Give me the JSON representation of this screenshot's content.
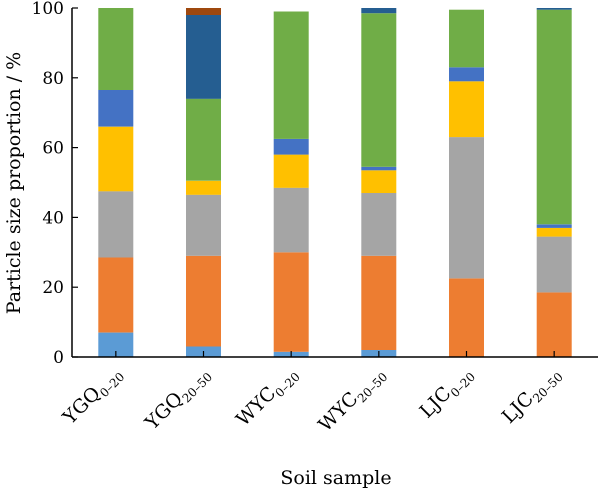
{
  "chart_data": {
    "type": "bar",
    "stacked": true,
    "title": "",
    "xlabel": "Soil sample",
    "ylabel": "Particle size proportion / %",
    "ylim": [
      0,
      100
    ],
    "yticks": [
      0,
      20,
      40,
      60,
      80,
      100
    ],
    "grid": false,
    "legend": null,
    "categories": [
      {
        "base": "YGQ",
        "sub": "0–20"
      },
      {
        "base": "YGQ",
        "sub": "20–50"
      },
      {
        "base": "WYC",
        "sub": "0–20"
      },
      {
        "base": "WYC",
        "sub": "20–50"
      },
      {
        "base": "LJC",
        "sub": "0–20"
      },
      {
        "base": "LJC",
        "sub": "20–50"
      }
    ],
    "series": [
      {
        "name": "light blue",
        "color": "#5b9bd5",
        "values": [
          7,
          3,
          1.5,
          2,
          0,
          0
        ]
      },
      {
        "name": "orange",
        "color": "#ed7d31",
        "values": [
          21.5,
          26,
          28.5,
          27,
          22.5,
          18.5
        ]
      },
      {
        "name": "gray",
        "color": "#a5a5a5",
        "values": [
          19,
          17.5,
          18.5,
          18,
          40.5,
          16
        ]
      },
      {
        "name": "yellow",
        "color": "#ffc000",
        "values": [
          18.5,
          4,
          9.5,
          6.5,
          16,
          2.5
        ]
      },
      {
        "name": "blue",
        "color": "#4472c4",
        "values": [
          10.5,
          0,
          4.5,
          1,
          4,
          1
        ]
      },
      {
        "name": "green",
        "color": "#70ad47",
        "values": [
          23.5,
          23.5,
          36.5,
          44,
          16.5,
          61.5
        ]
      },
      {
        "name": "dark blue",
        "color": "#255e91",
        "values": [
          0,
          24,
          0,
          1.5,
          0,
          0.5
        ]
      },
      {
        "name": "brown",
        "color": "#9e480e",
        "values": [
          0,
          2,
          0,
          0,
          0,
          0
        ]
      }
    ]
  }
}
